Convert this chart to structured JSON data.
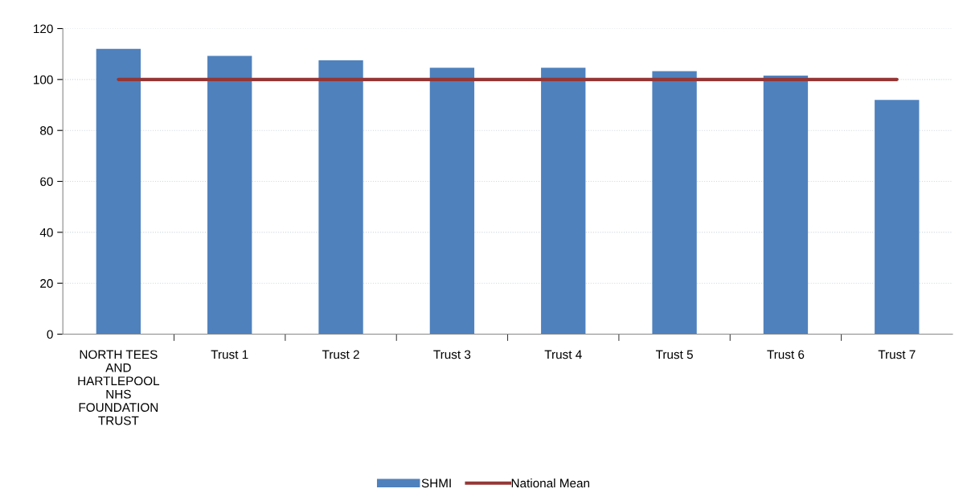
{
  "chart_data": {
    "type": "bar",
    "categories": [
      "NORTH TEES\nAND\nHARTLEPOOL\nNHS\nFOUNDATION\nTRUST",
      "Trust 1",
      "Trust 2",
      "Trust 3",
      "Trust 4",
      "Trust 5",
      "Trust 6",
      "Trust 7"
    ],
    "series": [
      {
        "name": "SHMI",
        "color": "#4f81bd",
        "values": [
          112,
          109.3,
          107.5,
          104.6,
          104.6,
          103.3,
          101.5,
          92
        ]
      },
      {
        "name": "National Mean",
        "type": "line",
        "color": "#953735",
        "values": [
          100,
          100,
          100,
          100,
          100,
          100,
          100,
          100
        ]
      }
    ],
    "ylim": [
      0,
      120
    ],
    "yticks": [
      0,
      20,
      40,
      60,
      80,
      100,
      120
    ],
    "grid": "y",
    "legend": "bottom"
  }
}
